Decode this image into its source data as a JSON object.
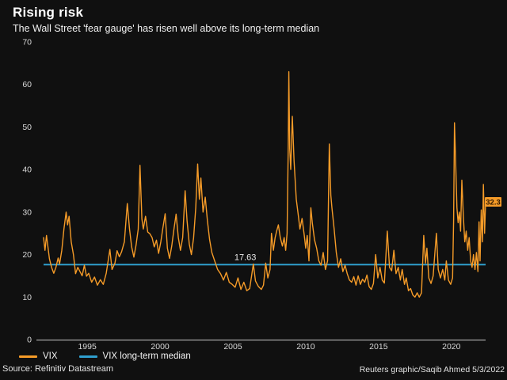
{
  "header": {
    "title": "Rising risk",
    "subtitle": "The Wall Street 'fear gauge' has risen well above its long-term median"
  },
  "legend": [
    {
      "label": "VIX",
      "color": "#f59b28"
    },
    {
      "label": "VIX long-term median",
      "color": "#2f9fce"
    }
  ],
  "footer": {
    "source": "Source: Refinitiv Datastream",
    "credit": "Reuters graphic/Saqib Ahmed 5/3/2022"
  },
  "colors": {
    "background": "#101010",
    "vix_line": "#f59b28",
    "median_line": "#2f9fce",
    "axis": "#c8c8c8",
    "tick_text": "#d9d9d9",
    "annotation_text": "#e8e8e8",
    "end_label_bg": "#f59b28",
    "end_label_text": "#2b1600"
  },
  "chart_data": {
    "type": "line",
    "title": "Rising risk",
    "subtitle": "The Wall Street 'fear gauge' has risen well above its long-term median",
    "xlabel": "",
    "ylabel": "",
    "grid": false,
    "legend_position": "bottom-left",
    "ylim": [
      0,
      70
    ],
    "yticks": [
      0,
      10,
      20,
      30,
      40,
      50,
      60,
      70
    ],
    "xlim": [
      1992.0,
      2022.35
    ],
    "xticks": [
      1995,
      2000,
      2005,
      2010,
      2015,
      2020
    ],
    "median_value": 17.63,
    "median_annotation": {
      "label": "17.63",
      "year": 2005.1,
      "value": 19.5
    },
    "end_annotation": {
      "label": "32.3",
      "value": 32.3
    },
    "series": [
      {
        "name": "VIX",
        "color": "#f59b28",
        "x": [
          1992.0,
          1992.1,
          1992.2,
          1992.4,
          1992.55,
          1992.7,
          1992.85,
          1993.0,
          1993.1,
          1993.25,
          1993.4,
          1993.55,
          1993.65,
          1993.75,
          1993.9,
          1994.05,
          1994.2,
          1994.35,
          1994.5,
          1994.65,
          1994.8,
          1994.95,
          1995.1,
          1995.3,
          1995.5,
          1995.7,
          1995.9,
          1996.1,
          1996.3,
          1996.55,
          1996.7,
          1996.9,
          1997.05,
          1997.2,
          1997.35,
          1997.55,
          1997.75,
          1997.9,
          1998.05,
          1998.2,
          1998.35,
          1998.5,
          1998.62,
          1998.75,
          1998.85,
          1999.0,
          1999.15,
          1999.3,
          1999.45,
          1999.6,
          1999.75,
          1999.9,
          2000.05,
          2000.2,
          2000.35,
          2000.5,
          2000.65,
          2000.8,
          2000.95,
          2001.1,
          2001.25,
          2001.4,
          2001.55,
          2001.72,
          2001.85,
          2002.0,
          2002.15,
          2002.3,
          2002.45,
          2002.58,
          2002.7,
          2002.8,
          2002.95,
          2003.1,
          2003.25,
          2003.4,
          2003.55,
          2003.75,
          2003.95,
          2004.15,
          2004.35,
          2004.55,
          2004.75,
          2004.95,
          2005.15,
          2005.35,
          2005.55,
          2005.75,
          2005.95,
          2006.15,
          2006.4,
          2006.55,
          2006.75,
          2006.95,
          2007.1,
          2007.25,
          2007.4,
          2007.55,
          2007.65,
          2007.78,
          2007.9,
          2008.0,
          2008.12,
          2008.25,
          2008.4,
          2008.52,
          2008.62,
          2008.72,
          2008.8,
          2008.84,
          2008.9,
          2008.97,
          2009.08,
          2009.2,
          2009.35,
          2009.5,
          2009.6,
          2009.75,
          2009.9,
          2010.0,
          2010.1,
          2010.22,
          2010.35,
          2010.45,
          2010.6,
          2010.75,
          2010.9,
          2011.05,
          2011.2,
          2011.35,
          2011.5,
          2011.62,
          2011.72,
          2011.8,
          2011.95,
          2012.1,
          2012.25,
          2012.4,
          2012.55,
          2012.7,
          2012.85,
          2013.0,
          2013.15,
          2013.3,
          2013.45,
          2013.6,
          2013.75,
          2013.9,
          2014.05,
          2014.2,
          2014.35,
          2014.5,
          2014.65,
          2014.8,
          2014.95,
          2015.1,
          2015.25,
          2015.4,
          2015.6,
          2015.75,
          2015.9,
          2016.05,
          2016.2,
          2016.35,
          2016.5,
          2016.62,
          2016.78,
          2016.9,
          2017.05,
          2017.2,
          2017.35,
          2017.5,
          2017.65,
          2017.8,
          2017.95,
          2018.1,
          2018.22,
          2018.32,
          2018.45,
          2018.6,
          2018.75,
          2018.88,
          2018.97,
          2019.1,
          2019.25,
          2019.4,
          2019.55,
          2019.65,
          2019.8,
          2019.95,
          2020.08,
          2020.15,
          2020.21,
          2020.3,
          2020.38,
          2020.46,
          2020.55,
          2020.63,
          2020.72,
          2020.82,
          2020.92,
          2021.02,
          2021.12,
          2021.22,
          2021.32,
          2021.42,
          2021.52,
          2021.62,
          2021.72,
          2021.82,
          2021.9,
          2021.97,
          2022.05,
          2022.13,
          2022.2,
          2022.28,
          2022.35
        ],
        "y": [
          24,
          21,
          24.5,
          19,
          17,
          15.6,
          17,
          19.2,
          17.8,
          21,
          26,
          30,
          27,
          29,
          23,
          20,
          15.5,
          17,
          16,
          15,
          17.5,
          14.9,
          15.6,
          13.5,
          14.7,
          12.8,
          14.1,
          13,
          15.6,
          21.2,
          16.5,
          18,
          20.9,
          19.5,
          20.6,
          23,
          32,
          26,
          21.8,
          19.4,
          22.2,
          26,
          41,
          28.4,
          26,
          29,
          25.3,
          24.9,
          24,
          21.8,
          23.4,
          20.3,
          23,
          26.5,
          29.6,
          21.5,
          19.1,
          22,
          26,
          29.5,
          24,
          21,
          24,
          35,
          28,
          22.5,
          20,
          24,
          31,
          41.3,
          33,
          38,
          30,
          33.5,
          28,
          23.5,
          20.5,
          18.5,
          16.5,
          15.5,
          14,
          15.8,
          13.5,
          13,
          12.3,
          14.5,
          11.8,
          13.5,
          11.5,
          12,
          17.8,
          13.8,
          12.5,
          11.8,
          12.8,
          18,
          14.5,
          16.5,
          25,
          21,
          24,
          25.5,
          27,
          24,
          22,
          24,
          21,
          25,
          46,
          63,
          45,
          40,
          52.5,
          42,
          33,
          29,
          26,
          28.5,
          24.5,
          21.5,
          24.5,
          18.5,
          31,
          27.5,
          23.5,
          21.5,
          18.5,
          17.5,
          20.5,
          16.5,
          18.5,
          46,
          34,
          31,
          26,
          20.5,
          17,
          19,
          16,
          17.5,
          15.5,
          14,
          13.5,
          14.8,
          12.8,
          15,
          13,
          14.2,
          13.5,
          15.2,
          12.5,
          11.8,
          13.2,
          20,
          14.5,
          17,
          14,
          13.3,
          25.5,
          17,
          16.2,
          21,
          15.5,
          17,
          14,
          16.5,
          13,
          14.5,
          11.5,
          12,
          10.5,
          10,
          11,
          10,
          11,
          24.5,
          18,
          21.5,
          14.5,
          13.2,
          15,
          21,
          25,
          16.5,
          14.5,
          16.5,
          14,
          18.5,
          14,
          13,
          14.5,
          28,
          51,
          41,
          31,
          27.5,
          30,
          25.5,
          37.5,
          29,
          23,
          25.5,
          21,
          24,
          18.5,
          17,
          20,
          16.5,
          20.5,
          16,
          27.7,
          18.5,
          30.5,
          23,
          36.5,
          25,
          32.3
        ]
      },
      {
        "name": "VIX long-term median",
        "color": "#2f9fce",
        "x": [
          1992.0,
          2022.35
        ],
        "y": [
          17.63,
          17.63
        ]
      }
    ]
  }
}
